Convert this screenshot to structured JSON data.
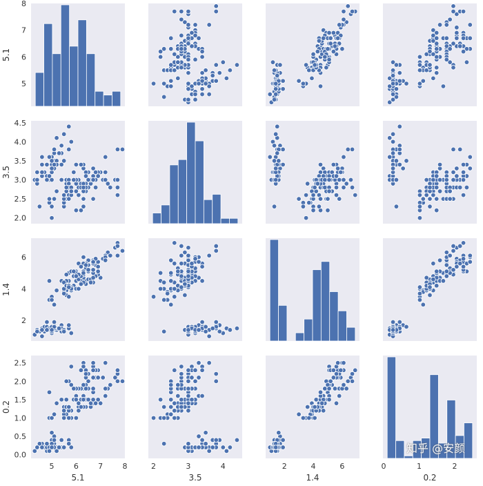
{
  "chart_data": {
    "type": "pairplot",
    "variables": [
      "5.1",
      "3.5",
      "1.4",
      "0.2"
    ],
    "style": {
      "panel_background": "#eaeaf2",
      "marker_color": "#4c72b0",
      "marker_edge": "#ffffff",
      "grid": false
    },
    "axes": {
      "5.1": {
        "lim": [
          4.15,
          8.0
        ],
        "ticks": [
          5,
          6,
          7,
          8
        ],
        "diag_ticks": [
          6,
          8
        ]
      },
      "3.5": {
        "lim": [
          1.85,
          4.55
        ],
        "ticks": [
          2.0,
          2.5,
          3.0,
          3.5,
          4.0,
          4.5
        ],
        "tick_labels": [
          "2.0",
          "2.5",
          "3.0",
          "3.5",
          "4.0",
          "4.5"
        ],
        "diag_ticks": [
          2,
          3,
          4
        ]
      },
      "1.4": {
        "lim": [
          0.7,
          7.2
        ],
        "ticks": [
          2,
          4,
          6
        ],
        "diag_ticks": [
          2,
          4,
          6
        ]
      },
      "0.2": {
        "lim": [
          -0.1,
          2.7
        ],
        "ticks": [
          0.0,
          0.5,
          1.0,
          1.5,
          2.0,
          2.5
        ],
        "tick_labels": [
          "0.0",
          "0.5",
          "1.0",
          "1.5",
          "2.0",
          "2.5"
        ],
        "diag_ticks": [
          0,
          1,
          2
        ]
      }
    },
    "histograms": {
      "5.1": {
        "edges": [
          4.3,
          4.66,
          5.02,
          5.38,
          5.74,
          6.1,
          6.46,
          6.82,
          7.18,
          7.54,
          7.9
        ],
        "counts": [
          9,
          22,
          14,
          27,
          16,
          23,
          14,
          4,
          3,
          4
        ]
      },
      "3.5": {
        "edges": [
          2.0,
          2.24,
          2.48,
          2.72,
          2.96,
          3.2,
          3.44,
          3.68,
          3.92,
          4.16,
          4.4
        ],
        "counts": [
          4,
          7,
          22,
          24,
          38,
          31,
          9,
          11,
          2,
          2
        ]
      },
      "1.4": {
        "edges": [
          1.0,
          1.59,
          2.18,
          2.77,
          3.36,
          3.95,
          4.54,
          5.13,
          5.72,
          6.31,
          6.9
        ],
        "counts": [
          37,
          13,
          0,
          3,
          8,
          26,
          29,
          18,
          11,
          5
        ]
      },
      "0.2": {
        "edges": [
          0.1,
          0.34,
          0.58,
          0.82,
          1.06,
          1.3,
          1.54,
          1.78,
          2.02,
          2.26,
          2.5
        ],
        "counts": [
          40,
          7,
          1,
          7,
          8,
          33,
          6,
          23,
          9,
          14
        ]
      }
    },
    "series": [
      {
        "name": "5.1",
        "values": [
          4.9,
          4.7,
          4.6,
          5.0,
          5.4,
          4.6,
          5.0,
          4.4,
          4.9,
          5.4,
          4.8,
          4.8,
          4.3,
          5.8,
          5.7,
          5.4,
          5.1,
          5.7,
          5.1,
          5.4,
          5.1,
          4.6,
          5.1,
          4.8,
          5.0,
          5.0,
          5.2,
          5.2,
          4.7,
          4.8,
          5.4,
          5.2,
          5.5,
          4.9,
          5.0,
          5.5,
          4.9,
          4.4,
          5.1,
          5.0,
          4.5,
          4.4,
          5.0,
          5.1,
          4.8,
          5.1,
          4.6,
          5.3,
          5.0,
          7.0,
          6.4,
          6.9,
          5.5,
          6.5,
          5.7,
          6.3,
          4.9,
          6.6,
          5.2,
          5.0,
          5.9,
          6.0,
          6.1,
          5.6,
          6.7,
          5.6,
          5.8,
          6.2,
          5.6,
          5.9,
          6.1,
          6.3,
          6.1,
          6.4,
          6.6,
          6.8,
          6.7,
          6.0,
          5.7,
          5.5,
          5.5,
          5.8,
          6.0,
          5.4,
          6.0,
          6.7,
          6.3,
          5.6,
          5.5,
          5.5,
          6.1,
          5.8,
          5.0,
          5.6,
          5.7,
          5.7,
          6.2,
          5.1,
          5.7,
          6.3,
          5.8,
          7.1,
          6.3,
          6.5,
          7.6,
          4.9,
          7.3,
          6.7,
          7.2,
          6.5,
          6.4,
          6.8,
          5.7,
          5.8,
          6.4,
          6.5,
          7.7,
          7.7,
          6.0,
          6.9,
          5.6,
          7.7,
          6.3,
          6.7,
          7.2,
          6.2,
          6.1,
          6.4,
          7.2,
          7.4,
          7.9,
          6.4,
          6.3,
          6.1,
          7.7,
          6.3,
          6.4,
          6.0,
          6.9,
          6.7,
          6.9,
          5.8,
          6.8,
          6.7,
          6.7,
          6.3,
          6.5,
          6.2,
          5.9
        ]
      },
      {
        "name": "3.5",
        "values": [
          3.0,
          3.2,
          3.1,
          3.6,
          3.9,
          3.4,
          3.4,
          2.9,
          3.1,
          3.7,
          3.4,
          3.0,
          3.0,
          4.0,
          4.4,
          3.9,
          3.5,
          3.8,
          3.8,
          3.4,
          3.7,
          3.6,
          3.3,
          3.4,
          3.0,
          3.4,
          3.5,
          3.4,
          3.2,
          3.1,
          3.4,
          4.1,
          4.2,
          3.1,
          3.2,
          3.5,
          3.6,
          3.0,
          3.4,
          3.5,
          2.3,
          3.2,
          3.5,
          3.8,
          3.0,
          3.8,
          3.2,
          3.7,
          3.3,
          3.2,
          3.2,
          3.1,
          2.3,
          2.8,
          2.8,
          3.3,
          2.4,
          2.9,
          2.7,
          2.0,
          3.0,
          2.2,
          2.9,
          2.9,
          3.1,
          3.0,
          2.7,
          2.2,
          2.5,
          3.2,
          2.8,
          2.5,
          2.8,
          2.9,
          3.0,
          2.8,
          3.0,
          2.9,
          2.6,
          2.4,
          2.4,
          2.7,
          2.7,
          3.0,
          3.4,
          3.1,
          2.3,
          3.0,
          2.5,
          2.6,
          3.0,
          2.6,
          2.3,
          2.7,
          3.0,
          2.9,
          2.9,
          2.5,
          2.8,
          3.3,
          2.7,
          3.0,
          2.9,
          3.0,
          3.0,
          2.5,
          2.9,
          2.5,
          3.6,
          3.2,
          2.7,
          3.0,
          2.5,
          2.8,
          3.2,
          3.0,
          3.8,
          2.6,
          2.2,
          3.2,
          2.8,
          2.8,
          2.7,
          3.3,
          3.2,
          2.8,
          3.0,
          2.8,
          3.0,
          2.8,
          3.8,
          2.8,
          2.8,
          2.6,
          3.0,
          3.4,
          3.1,
          3.0,
          3.1,
          3.1,
          3.1,
          2.7,
          3.2,
          3.3,
          3.0,
          2.5,
          3.0,
          3.4,
          3.0
        ]
      },
      {
        "name": "1.4",
        "values": [
          1.4,
          1.3,
          1.5,
          1.4,
          1.7,
          1.4,
          1.5,
          1.4,
          1.5,
          1.5,
          1.6,
          1.4,
          1.1,
          1.2,
          1.5,
          1.3,
          1.4,
          1.7,
          1.5,
          1.7,
          1.5,
          1.0,
          1.7,
          1.9,
          1.6,
          1.6,
          1.5,
          1.4,
          1.6,
          1.6,
          1.5,
          1.5,
          1.4,
          1.5,
          1.2,
          1.3,
          1.4,
          1.3,
          1.5,
          1.3,
          1.3,
          1.3,
          1.6,
          1.9,
          1.4,
          1.6,
          1.4,
          1.5,
          1.4,
          4.7,
          4.5,
          4.9,
          4.0,
          4.6,
          4.5,
          4.7,
          3.3,
          4.6,
          3.9,
          3.5,
          4.2,
          4.0,
          4.7,
          3.6,
          4.4,
          4.5,
          4.1,
          4.5,
          3.9,
          4.8,
          4.0,
          4.9,
          4.7,
          4.3,
          4.4,
          4.8,
          5.0,
          4.5,
          3.5,
          3.8,
          3.7,
          3.9,
          5.1,
          4.5,
          4.5,
          4.7,
          4.4,
          4.1,
          4.0,
          4.4,
          4.6,
          4.0,
          3.3,
          4.2,
          4.2,
          4.2,
          4.3,
          3.0,
          4.1,
          6.0,
          5.1,
          5.9,
          5.6,
          5.8,
          6.6,
          4.5,
          6.3,
          5.8,
          6.1,
          5.1,
          5.3,
          5.5,
          5.0,
          5.1,
          5.3,
          5.5,
          6.7,
          6.9,
          5.0,
          5.7,
          4.9,
          6.7,
          4.9,
          5.7,
          6.0,
          4.8,
          4.9,
          5.6,
          5.8,
          6.1,
          6.4,
          5.6,
          5.1,
          5.6,
          6.1,
          5.6,
          5.5,
          4.8,
          5.4,
          5.6,
          5.1,
          5.1,
          5.9,
          5.7,
          5.2,
          5.0,
          5.2,
          5.4,
          5.1
        ]
      },
      {
        "name": "0.2",
        "values": [
          0.2,
          0.2,
          0.2,
          0.2,
          0.4,
          0.3,
          0.2,
          0.2,
          0.1,
          0.2,
          0.2,
          0.1,
          0.1,
          0.2,
          0.4,
          0.4,
          0.3,
          0.3,
          0.3,
          0.2,
          0.4,
          0.2,
          0.5,
          0.2,
          0.2,
          0.4,
          0.2,
          0.2,
          0.2,
          0.2,
          0.4,
          0.1,
          0.2,
          0.2,
          0.2,
          0.2,
          0.1,
          0.2,
          0.2,
          0.3,
          0.3,
          0.2,
          0.6,
          0.4,
          0.3,
          0.2,
          0.2,
          0.2,
          0.2,
          1.4,
          1.5,
          1.5,
          1.3,
          1.5,
          1.3,
          1.6,
          1.0,
          1.3,
          1.4,
          1.0,
          1.5,
          1.0,
          1.4,
          1.3,
          1.4,
          1.5,
          1.0,
          1.5,
          1.1,
          1.8,
          1.3,
          1.5,
          1.2,
          1.3,
          1.4,
          1.4,
          1.7,
          1.5,
          1.0,
          1.1,
          1.0,
          1.2,
          1.6,
          1.5,
          1.6,
          1.5,
          1.3,
          1.3,
          1.3,
          1.2,
          1.4,
          1.2,
          1.0,
          1.3,
          1.2,
          1.3,
          1.3,
          1.1,
          1.3,
          2.5,
          1.9,
          2.1,
          1.8,
          2.2,
          2.1,
          1.7,
          1.8,
          1.8,
          2.5,
          2.0,
          1.9,
          2.1,
          2.0,
          2.4,
          2.3,
          1.8,
          2.2,
          2.3,
          1.5,
          2.3,
          2.0,
          2.0,
          1.8,
          2.1,
          1.8,
          1.8,
          1.8,
          2.1,
          1.6,
          1.9,
          2.0,
          2.2,
          1.5,
          1.4,
          2.3,
          2.4,
          1.8,
          1.8,
          2.1,
          2.4,
          2.3,
          1.9,
          2.3,
          2.5,
          2.3,
          1.9,
          2.0,
          2.3,
          1.8
        ]
      }
    ]
  },
  "watermark": "知乎 @安颜"
}
